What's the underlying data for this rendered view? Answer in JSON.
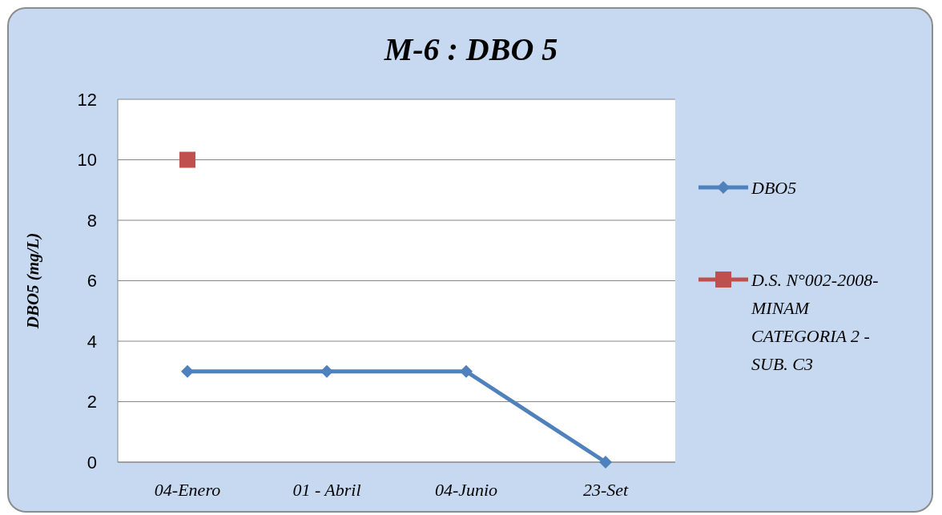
{
  "chart_data": {
    "type": "line",
    "title": "M-6 : DBO 5",
    "ylabel": "DBO5 (mg/L)",
    "categories": [
      "04-Enero",
      "01 - Abril",
      "04-Junio",
      "23-Set"
    ],
    "series": [
      {
        "name": "DBO5",
        "color": "#4f81bd",
        "values": [
          3,
          3,
          3,
          0
        ],
        "marker": "diamond"
      },
      {
        "name": "D.S. N°002-2008-MINAM CATEGORIA 2 - SUB. C3",
        "color": "#c0504d",
        "values": [
          10,
          null,
          null,
          null
        ],
        "marker": "square"
      }
    ],
    "ylim": [
      0,
      12
    ],
    "yticks": [
      0,
      2,
      4,
      6,
      8,
      10,
      12
    ],
    "grid": "y",
    "legend": "right"
  }
}
